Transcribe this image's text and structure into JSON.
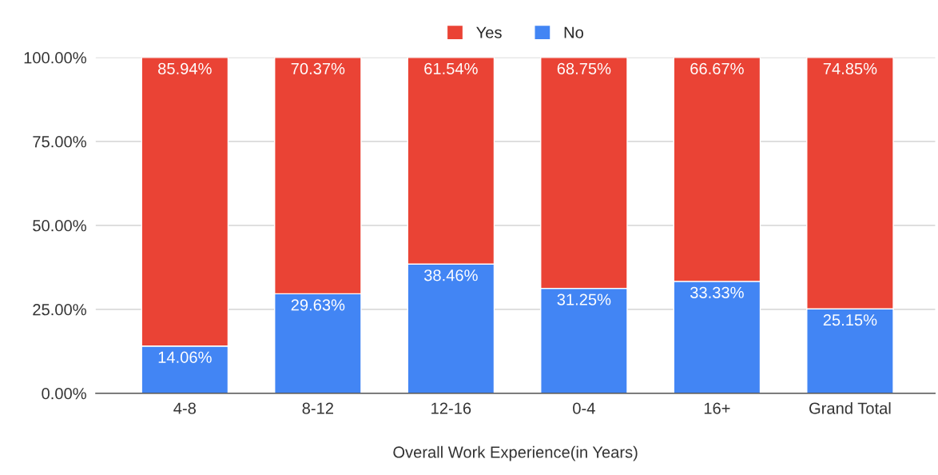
{
  "chart_data": {
    "type": "bar",
    "stacked": true,
    "xlabel": "Overall Work Experience(in Years)",
    "categories": [
      "4-8",
      "8-12",
      "12-16",
      "0-4",
      "16+",
      "Grand Total"
    ],
    "series": [
      {
        "name": "No",
        "color": "#4285f4",
        "values": [
          14.06,
          29.63,
          38.46,
          31.25,
          33.33,
          25.15
        ],
        "value_labels": [
          "14.06%",
          "29.63%",
          "38.46%",
          "31.25%",
          "33.33%",
          "25.15%"
        ]
      },
      {
        "name": "Yes",
        "color": "#ea4335",
        "values": [
          85.94,
          70.37,
          61.54,
          68.75,
          66.67,
          74.85
        ],
        "value_labels": [
          "85.94%",
          "70.37%",
          "61.54%",
          "68.75%",
          "66.67%",
          "74.85%"
        ]
      }
    ],
    "ylim": [
      0,
      100
    ],
    "yticks": [
      {
        "value": 0,
        "label": "0.00%"
      },
      {
        "value": 25,
        "label": "25.00%"
      },
      {
        "value": 50,
        "label": "50.00%"
      },
      {
        "value": 75,
        "label": "75.00%"
      },
      {
        "value": 100,
        "label": "100.00%"
      }
    ],
    "grid": "y",
    "legend": "top"
  }
}
